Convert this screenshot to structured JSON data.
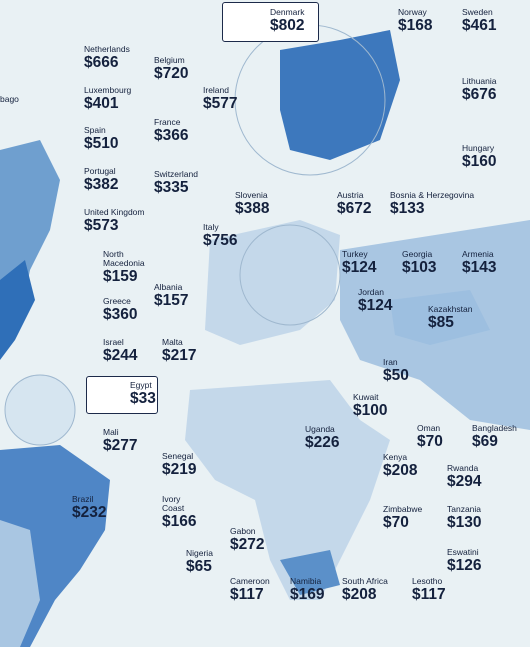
{
  "labels": [
    {
      "name": "Denmark",
      "amount": "$802"
    },
    {
      "name": "Norway",
      "amount": "$168"
    },
    {
      "name": "Sweden",
      "amount": "$461"
    },
    {
      "name": "Netherlands",
      "amount": "$666"
    },
    {
      "name": "Belgium",
      "amount": "$720"
    },
    {
      "name": "Luxembourg",
      "amount": "$401"
    },
    {
      "name": "Ireland",
      "amount": "$577"
    },
    {
      "name": "Lithuania",
      "amount": "$676"
    },
    {
      "name": "Spain",
      "amount": "$510"
    },
    {
      "name": "France",
      "amount": "$366"
    },
    {
      "name": "Hungary",
      "amount": "$160"
    },
    {
      "name": "Portugal",
      "amount": "$382"
    },
    {
      "name": "Switzerland",
      "amount": "$335"
    },
    {
      "name": "Slovenia",
      "amount": "$388"
    },
    {
      "name": "Austria",
      "amount": "$672"
    },
    {
      "name": "Bosnia & Herzegovina",
      "amount": "$133"
    },
    {
      "name": "United Kingdom",
      "amount": "$573"
    },
    {
      "name": "Italy",
      "amount": "$756"
    },
    {
      "name": "Turkey",
      "amount": "$124"
    },
    {
      "name": "Georgia",
      "amount": "$103"
    },
    {
      "name": "Armenia",
      "amount": "$143"
    },
    {
      "name": "North Macedonia",
      "amount": "$159"
    },
    {
      "name": "Albania",
      "amount": "$157"
    },
    {
      "name": "Jordan",
      "amount": "$124"
    },
    {
      "name": "Kazakhstan",
      "amount": "$85"
    },
    {
      "name": "Greece",
      "amount": "$360"
    },
    {
      "name": "Israel",
      "amount": "$244"
    },
    {
      "name": "Malta",
      "amount": "$217"
    },
    {
      "name": "Iran",
      "amount": "$50"
    },
    {
      "name": "Egypt",
      "amount": "$33"
    },
    {
      "name": "Kuwait",
      "amount": "$100"
    },
    {
      "name": "Oman",
      "amount": "$70"
    },
    {
      "name": "Bangladesh",
      "amount": "$69"
    },
    {
      "name": "Mali",
      "amount": "$277"
    },
    {
      "name": "Uganda",
      "amount": "$226"
    },
    {
      "name": "Senegal",
      "amount": "$219"
    },
    {
      "name": "Kenya",
      "amount": "$208"
    },
    {
      "name": "Rwanda",
      "amount": "$294"
    },
    {
      "name": "Brazil",
      "amount": "$232"
    },
    {
      "name": "Ivory Coast",
      "amount": "$166"
    },
    {
      "name": "Zimbabwe",
      "amount": "$70"
    },
    {
      "name": "Tanzania",
      "amount": "$130"
    },
    {
      "name": "Gabon",
      "amount": "$272"
    },
    {
      "name": "Nigeria",
      "amount": "$65"
    },
    {
      "name": "Eswatini",
      "amount": "$126"
    },
    {
      "name": "Cameroon",
      "amount": "$117"
    },
    {
      "name": "Namibia",
      "amount": "$169"
    },
    {
      "name": "South Africa",
      "amount": "$208"
    },
    {
      "name": "Lesotho",
      "amount": "$117"
    }
  ],
  "cut_label": "bago"
}
